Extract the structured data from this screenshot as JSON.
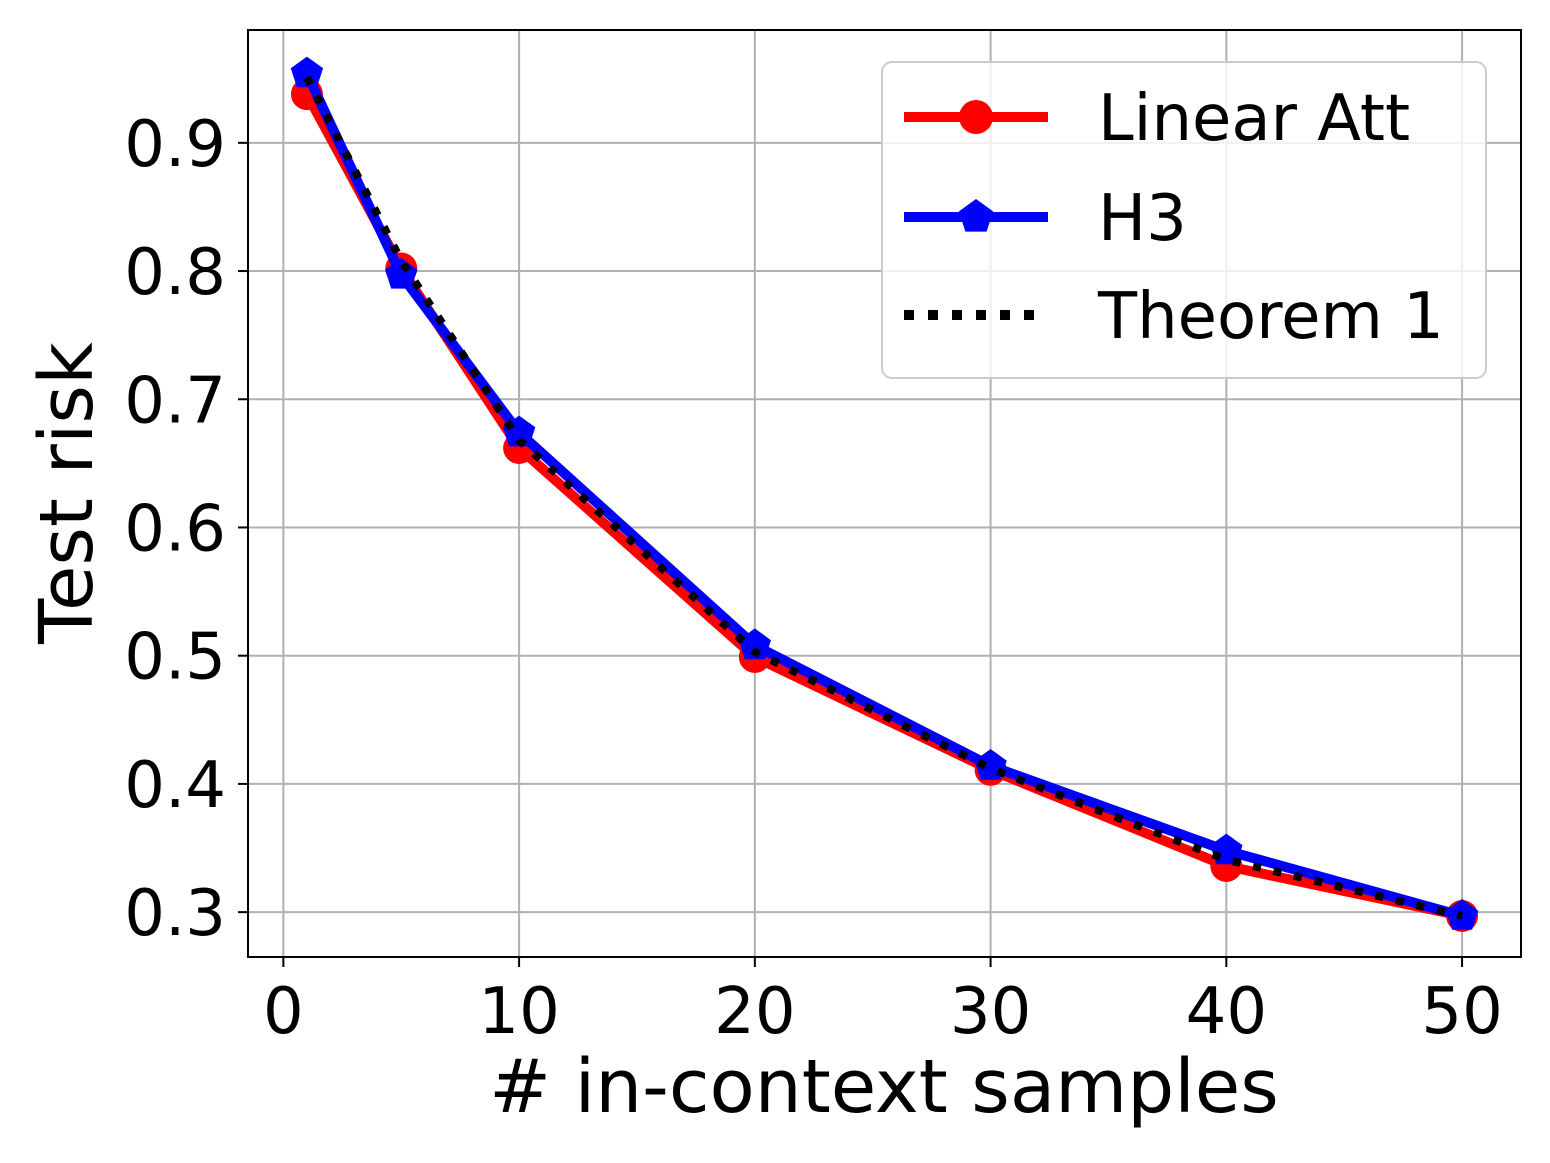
{
  "chart_data": {
    "type": "line",
    "xlabel": "# in-context samples",
    "ylabel": "Test risk",
    "xlim": [
      -1.5,
      52.5
    ],
    "ylim": [
      0.265,
      0.988
    ],
    "xticks": [
      0,
      10,
      20,
      30,
      40,
      50
    ],
    "xtick_labels": [
      "0",
      "10",
      "20",
      "30",
      "40",
      "50"
    ],
    "yticks": [
      0.3,
      0.4,
      0.5,
      0.6,
      0.7,
      0.8,
      0.9
    ],
    "ytick_labels": [
      "0.3",
      "0.4",
      "0.5",
      "0.6",
      "0.7",
      "0.8",
      "0.9"
    ],
    "grid": true,
    "legend_position": "top-right",
    "x": [
      1,
      5,
      10,
      20,
      30,
      40,
      50
    ],
    "series": [
      {
        "name": "Linear Att",
        "color": "#ff0000",
        "marker": "circle",
        "line": "solid",
        "values": [
          0.938,
          0.802,
          0.662,
          0.499,
          0.411,
          0.336,
          0.297
        ]
      },
      {
        "name": "H3",
        "color": "#0000ff",
        "marker": "pentagon",
        "line": "solid",
        "values": [
          0.954,
          0.797,
          0.674,
          0.508,
          0.414,
          0.348,
          0.297
        ]
      },
      {
        "name": "Theorem 1",
        "color": "#000000",
        "marker": "none",
        "line": "dotted",
        "values": [
          0.951,
          0.808,
          0.668,
          0.503,
          0.412,
          0.341,
          0.297
        ]
      }
    ]
  }
}
